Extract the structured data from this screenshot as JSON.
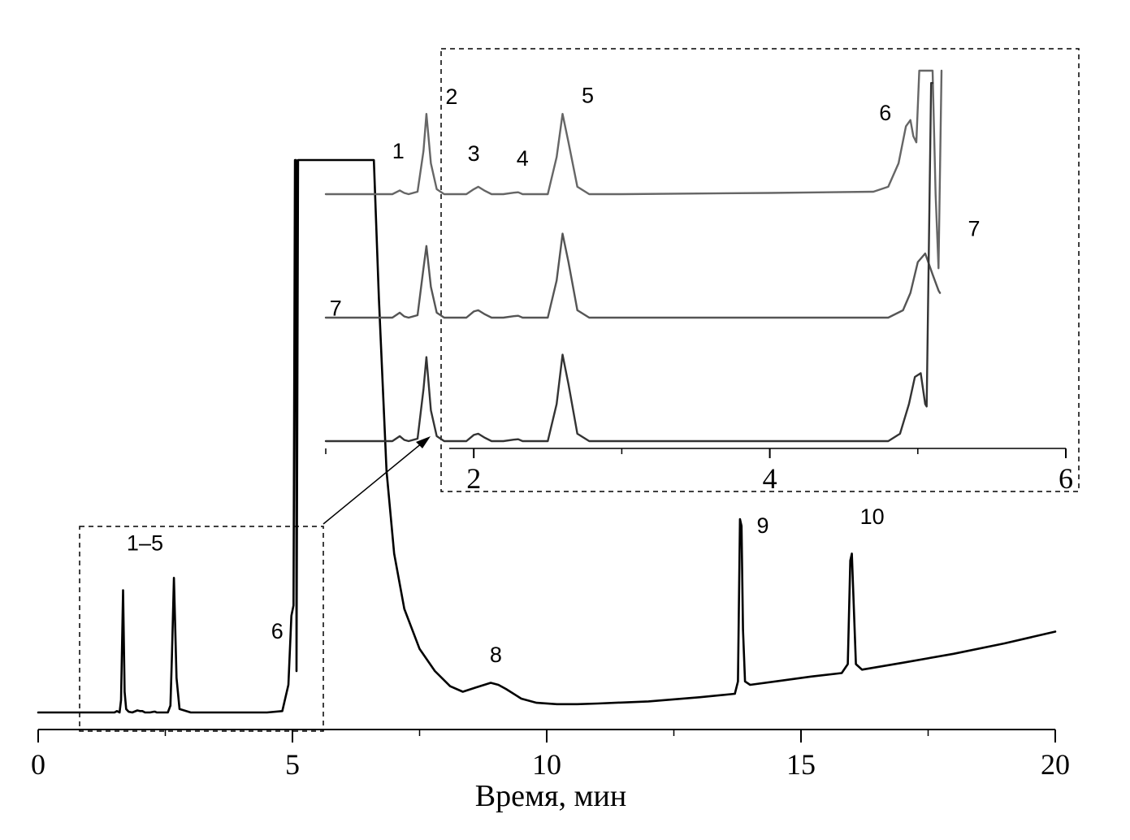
{
  "chart_data": [
    {
      "id": "main",
      "type": "line",
      "xlabel": "Время, мин",
      "xlim": [
        0,
        20
      ],
      "x_ticks": [
        0,
        5,
        10,
        15,
        20
      ],
      "x_minor_step": 2.5,
      "grid": false,
      "series": [
        {
          "color": "#000000",
          "x": [
            0.0,
            1.5,
            1.55,
            1.6,
            1.63,
            1.67,
            1.7,
            1.73,
            1.78,
            1.85,
            1.95,
            2.0,
            2.05,
            2.1,
            2.2,
            2.27,
            2.3,
            2.33,
            2.4,
            2.55,
            2.6,
            2.63,
            2.67,
            2.72,
            2.78,
            3.0,
            4.5,
            4.8,
            4.92,
            4.98,
            5.02,
            5.05,
            5.07,
            5.08,
            5.11,
            5.2,
            6.0,
            6.6,
            6.7,
            6.85,
            7.0,
            7.2,
            7.5,
            7.8,
            8.1,
            8.35,
            8.6,
            8.9,
            9.05,
            9.2,
            9.5,
            9.8,
            10.2,
            10.6,
            11.0,
            12.0,
            13.0,
            13.7,
            13.76,
            13.8,
            13.83,
            13.86,
            13.9,
            14.0,
            14.6,
            15.2,
            15.8,
            15.92,
            15.97,
            16.0,
            16.04,
            16.08,
            16.2,
            17.0,
            18.0,
            19.0,
            20.0
          ],
          "y": [
            0.0,
            0.0,
            0.02,
            0.0,
            0.18,
            1.77,
            0.3,
            0.05,
            0.01,
            0.0,
            0.03,
            0.02,
            0.02,
            0.0,
            0.0,
            0.01,
            0.01,
            0.0,
            0.0,
            0.0,
            0.1,
            0.8,
            1.95,
            0.5,
            0.05,
            0.0,
            0.0,
            0.02,
            0.4,
            1.4,
            1.55,
            8.0,
            8.0,
            0.6,
            8.0,
            8.0,
            8.0,
            8.0,
            6.0,
            3.5,
            2.3,
            1.5,
            0.92,
            0.6,
            0.38,
            0.3,
            0.36,
            0.43,
            0.4,
            0.34,
            0.2,
            0.14,
            0.12,
            0.12,
            0.13,
            0.16,
            0.22,
            0.27,
            0.45,
            2.8,
            2.7,
            1.2,
            0.45,
            0.4,
            0.46,
            0.52,
            0.57,
            0.7,
            2.2,
            2.3,
            1.5,
            0.7,
            0.62,
            0.72,
            0.85,
            1.0,
            1.17
          ]
        }
      ],
      "annotations": [
        {
          "text": "1–5",
          "x": 2.1,
          "y": 2.35
        },
        {
          "text": "6",
          "x": 4.7,
          "y": 1.07
        },
        {
          "text": "7",
          "x": 5.85,
          "y": 5.75
        },
        {
          "text": "8",
          "x": 9.0,
          "y": 0.73
        },
        {
          "text": "9",
          "x": 14.25,
          "y": 2.6
        },
        {
          "text": "10",
          "x": 16.4,
          "y": 2.73
        }
      ]
    },
    {
      "id": "inset",
      "type": "line",
      "xlim": [
        1.0,
        6.0
      ],
      "x_ticks": [
        2,
        4,
        6
      ],
      "x_minor_step": 1,
      "grid": false,
      "series": [
        {
          "color": "#666666",
          "offset": 2.0,
          "x": [
            1.0,
            1.45,
            1.5,
            1.53,
            1.56,
            1.62,
            1.66,
            1.68,
            1.71,
            1.75,
            1.8,
            1.95,
            2.0,
            2.03,
            2.07,
            2.12,
            2.2,
            2.27,
            2.3,
            2.33,
            2.4,
            2.5,
            2.56,
            2.6,
            2.64,
            2.7,
            2.78,
            3.0,
            4.0,
            4.7,
            4.8,
            4.87,
            4.92,
            4.95,
            4.97,
            4.99,
            5.01,
            5.1,
            5.12,
            5.14,
            5.16
          ],
          "y": [
            0.0,
            0.0,
            0.03,
            0.01,
            0.0,
            0.02,
            0.35,
            0.65,
            0.25,
            0.04,
            0.0,
            0.0,
            0.04,
            0.06,
            0.03,
            0.0,
            0.0,
            0.012,
            0.015,
            0.0,
            0.0,
            0.0,
            0.3,
            0.65,
            0.42,
            0.06,
            0.0,
            0.0,
            0.01,
            0.02,
            0.06,
            0.25,
            0.55,
            0.6,
            0.47,
            0.42,
            1.0,
            1.0,
            0.0,
            -0.6,
            1.0
          ]
        },
        {
          "color": "#555555",
          "offset": 1.0,
          "x": [
            1.0,
            1.45,
            1.5,
            1.53,
            1.56,
            1.62,
            1.66,
            1.68,
            1.71,
            1.75,
            1.8,
            1.95,
            2.0,
            2.03,
            2.07,
            2.12,
            2.2,
            2.27,
            2.3,
            2.33,
            2.4,
            2.5,
            2.56,
            2.6,
            2.64,
            2.7,
            2.78,
            3.0,
            4.0,
            4.8,
            4.9,
            4.95,
            5.0,
            5.05,
            5.1,
            5.14,
            5.15
          ],
          "y": [
            0.0,
            0.0,
            0.04,
            0.01,
            0.0,
            0.02,
            0.4,
            0.58,
            0.25,
            0.04,
            0.0,
            0.0,
            0.05,
            0.06,
            0.03,
            0.0,
            0.0,
            0.012,
            0.015,
            0.0,
            0.0,
            0.0,
            0.3,
            0.68,
            0.45,
            0.06,
            0.0,
            0.0,
            0.0,
            0.0,
            0.06,
            0.2,
            0.45,
            0.52,
            0.35,
            0.22,
            0.2
          ]
        },
        {
          "color": "#333333",
          "offset": 0.0,
          "x": [
            1.0,
            1.45,
            1.5,
            1.53,
            1.56,
            1.62,
            1.66,
            1.68,
            1.71,
            1.75,
            1.8,
            1.95,
            2.0,
            2.03,
            2.07,
            2.12,
            2.2,
            2.27,
            2.3,
            2.33,
            2.4,
            2.5,
            2.56,
            2.6,
            2.64,
            2.7,
            2.78,
            3.0,
            4.0,
            4.8,
            4.88,
            4.94,
            4.98,
            5.02,
            5.05,
            5.06,
            5.09,
            5.1
          ],
          "y": [
            0.0,
            0.0,
            0.04,
            0.01,
            0.0,
            0.02,
            0.42,
            0.68,
            0.25,
            0.04,
            0.0,
            0.0,
            0.05,
            0.06,
            0.03,
            0.0,
            0.0,
            0.012,
            0.015,
            0.0,
            0.0,
            0.0,
            0.3,
            0.7,
            0.46,
            0.06,
            0.0,
            0.0,
            0.0,
            0.0,
            0.06,
            0.3,
            0.52,
            0.55,
            0.3,
            0.28,
            2.9,
            2.9
          ]
        }
      ],
      "annotations": [
        {
          "text": "1",
          "x": 1.49,
          "y": 2.29
        },
        {
          "text": "2",
          "x": 1.85,
          "y": 2.73
        },
        {
          "text": "3",
          "x": 2.0,
          "y": 2.27
        },
        {
          "text": "4",
          "x": 2.33,
          "y": 2.23
        },
        {
          "text": "5",
          "x": 2.77,
          "y": 2.74
        },
        {
          "text": "6",
          "x": 4.78,
          "y": 2.6
        },
        {
          "text": "7",
          "x": 5.38,
          "y": 1.66
        }
      ]
    }
  ]
}
